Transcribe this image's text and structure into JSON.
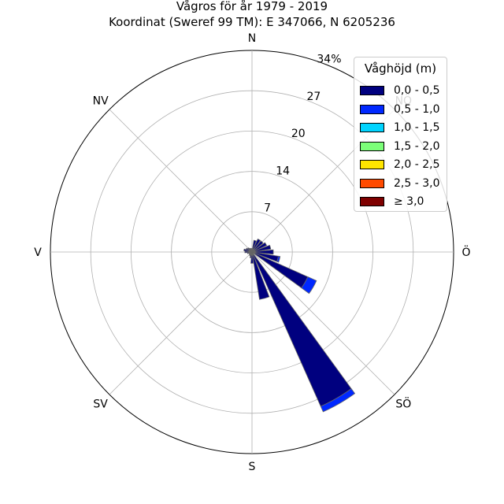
{
  "chart_data": {
    "type": "windrose",
    "title": "Vågros för år 1979 - 2019",
    "subtitle": "Koordinat (Sweref 99 TM): E 347066, N 6205236",
    "directions": [
      "N",
      "NV",
      "V",
      "SV",
      "S",
      "SÖ",
      "Ö",
      "NÖ"
    ],
    "radial_ticks": [
      "7",
      "14",
      "20",
      "27",
      "34%"
    ],
    "r_max": 34,
    "legend_title": "Våghöjd (m)",
    "bins": [
      {
        "label": "0,0 - 0,5",
        "color": "#00007f"
      },
      {
        "label": "0,5 - 1,0",
        "color": "#0028ff"
      },
      {
        "label": "1,0 - 1,5",
        "color": "#00d4ff"
      },
      {
        "label": "1,5 - 2,0",
        "color": "#7cff79"
      },
      {
        "label": "2,0 - 2,5",
        "color": "#ffe500"
      },
      {
        "label": "2,5 - 3,0",
        "color": "#ff4a00"
      },
      {
        "label": "≥ 3,0",
        "color": "#7f0000"
      }
    ],
    "sectors_deg_from_north": [
      0,
      15,
      30,
      45,
      60,
      75,
      90,
      105,
      120,
      135,
      150,
      165,
      180,
      195,
      210,
      225,
      240,
      255,
      270,
      285,
      300,
      315,
      330,
      345
    ],
    "stacked_values_percent": [
      [
        0.6,
        0
      ],
      [
        2.0,
        0
      ],
      [
        2.4,
        0
      ],
      [
        2.4,
        0
      ],
      [
        2.7,
        0
      ],
      [
        3.2,
        0
      ],
      [
        3.6,
        0
      ],
      [
        4.5,
        0.3
      ],
      [
        10.3,
        1.6
      ],
      [
        0.3,
        0
      ],
      [
        28.5,
        1.0
      ],
      [
        8.1,
        0
      ],
      [
        1.9,
        0
      ],
      [
        1.0,
        0
      ],
      [
        0.7,
        0
      ],
      [
        0.6,
        0
      ],
      [
        0.5,
        0
      ],
      [
        0.8,
        0
      ],
      [
        1.2,
        0
      ],
      [
        1.4,
        0
      ],
      [
        1.1,
        0
      ],
      [
        0.9,
        0
      ],
      [
        0.7,
        0
      ],
      [
        0.6,
        0
      ]
    ]
  }
}
